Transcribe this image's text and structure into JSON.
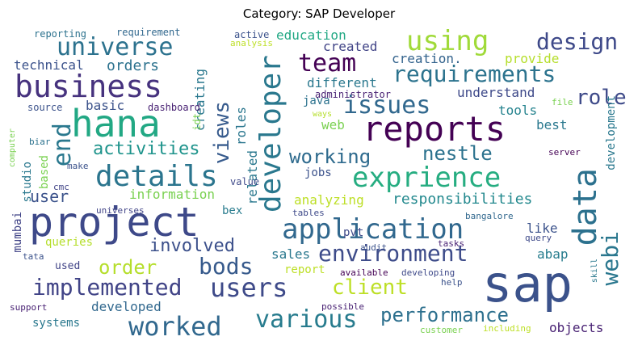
{
  "title": "Category: SAP Developer",
  "words": [
    {
      "text": "sap",
      "color": "#3b528b"
    },
    {
      "text": "project",
      "color": "#3e4989"
    },
    {
      "text": "reports",
      "color": "#440154"
    },
    {
      "text": "hana",
      "color": "#22a884"
    },
    {
      "text": "developer",
      "color": "#2a788e"
    },
    {
      "text": "data",
      "color": "#2c718e"
    },
    {
      "text": "business",
      "color": "#46327e"
    },
    {
      "text": "application",
      "color": "#31688e"
    },
    {
      "text": "exprience",
      "color": "#26ad81"
    },
    {
      "text": "using",
      "color": "#a0da39"
    },
    {
      "text": "details",
      "color": "#2b758e"
    },
    {
      "text": "team",
      "color": "#440154"
    },
    {
      "text": "universe",
      "color": "#2c728e"
    },
    {
      "text": "requirements",
      "color": "#2c738e"
    },
    {
      "text": "users",
      "color": "#3e4a89"
    },
    {
      "text": "issues",
      "color": "#31688e"
    },
    {
      "text": "webi",
      "color": "#2a778e"
    },
    {
      "text": "design",
      "color": "#3e4989"
    },
    {
      "text": "environment",
      "color": "#3e4c8a"
    },
    {
      "text": "implemented",
      "color": "#414487"
    },
    {
      "text": "worked",
      "color": "#31688e"
    },
    {
      "text": "various",
      "color": "#287c8e"
    },
    {
      "text": "performance",
      "color": "#2d708e"
    },
    {
      "text": "bods",
      "color": "#375a8c"
    },
    {
      "text": "client",
      "color": "#bddf26"
    },
    {
      "text": "working",
      "color": "#2f6b8e"
    },
    {
      "text": "nestle",
      "color": "#2c728e"
    },
    {
      "text": "role",
      "color": "#3e4a89"
    },
    {
      "text": "activities",
      "color": "#1f948c"
    },
    {
      "text": "views",
      "color": "#375b8d"
    },
    {
      "text": "involved",
      "color": "#3c508b"
    },
    {
      "text": "order",
      "color": "#b5de2b"
    },
    {
      "text": "end",
      "color": "#2a788e"
    },
    {
      "text": "user",
      "color": "#3b528b"
    },
    {
      "text": "responsibilities",
      "color": "#23898e"
    },
    {
      "text": "analyzing",
      "color": "#bddf26"
    },
    {
      "text": "information",
      "color": "#7ad151"
    },
    {
      "text": "orders",
      "color": "#2c728e"
    },
    {
      "text": "technical",
      "color": "#3b528b"
    },
    {
      "text": "different",
      "color": "#2a788e"
    },
    {
      "text": "education",
      "color": "#22a884"
    },
    {
      "text": "created",
      "color": "#414487"
    },
    {
      "text": "creation.",
      "color": "#33638d"
    },
    {
      "text": "understand",
      "color": "#3e4989"
    },
    {
      "text": "tools",
      "color": "#25838e"
    },
    {
      "text": "provide",
      "color": "#b5de2b"
    },
    {
      "text": "best",
      "color": "#2a788e"
    },
    {
      "text": "roles",
      "color": "#2a768e"
    },
    {
      "text": "basic",
      "color": "#3b528b"
    },
    {
      "text": "web",
      "color": "#7ad151"
    },
    {
      "text": "java",
      "color": "#2c728e"
    },
    {
      "text": "creating",
      "color": "#2a788e"
    },
    {
      "text": "related",
      "color": "#2a788e"
    },
    {
      "text": "abap",
      "color": "#287d8e"
    },
    {
      "text": "like",
      "color": "#3b528b"
    },
    {
      "text": "objects",
      "color": "#482173"
    },
    {
      "text": "developed",
      "color": "#31688e"
    },
    {
      "text": "development",
      "color": "#2a788e"
    },
    {
      "text": "systems",
      "color": "#2a788e"
    },
    {
      "text": "queries",
      "color": "#b5de2b"
    },
    {
      "text": "sales",
      "color": "#2a788e"
    },
    {
      "text": "report",
      "color": "#bddf26"
    },
    {
      "text": "used",
      "color": "#414487"
    },
    {
      "text": "pvt",
      "color": "#3e4989"
    },
    {
      "text": "bex",
      "color": "#287c8e"
    },
    {
      "text": "jobs",
      "color": "#3b528b"
    },
    {
      "text": "studio",
      "color": "#2a788e"
    },
    {
      "text": "based",
      "color": "#7ad151"
    },
    {
      "text": "mumbai",
      "color": "#414487"
    },
    {
      "text": "source",
      "color": "#3b528b"
    },
    {
      "text": "dashboard",
      "color": "#482173"
    },
    {
      "text": "reporting",
      "color": "#2c728e"
    },
    {
      "text": "requirement",
      "color": "#31688e"
    },
    {
      "text": "active",
      "color": "#3b528b"
    },
    {
      "text": "analysis",
      "color": "#bddf26"
    },
    {
      "text": "administrator",
      "color": "#482173"
    },
    {
      "text": "ways",
      "color": "#b5de2b"
    },
    {
      "text": "idt",
      "color": "#7ad151"
    },
    {
      "text": "biar",
      "color": "#2c728e"
    },
    {
      "text": "cmc",
      "color": "#414487"
    },
    {
      "text": "make",
      "color": "#3b528b"
    },
    {
      "text": "value",
      "color": "#3e4989"
    },
    {
      "text": "universes",
      "color": "#414487"
    },
    {
      "text": "tables",
      "color": "#3e4989"
    },
    {
      "text": "computer",
      "color": "#7ad151"
    },
    {
      "text": "tata",
      "color": "#3b528b"
    },
    {
      "text": "support",
      "color": "#482173"
    },
    {
      "text": "possible",
      "color": "#482173"
    },
    {
      "text": "audit",
      "color": "#3b528b"
    },
    {
      "text": "available",
      "color": "#440154"
    },
    {
      "text": "developing",
      "color": "#3e4989"
    },
    {
      "text": "help",
      "color": "#3b528b"
    },
    {
      "text": "tasks",
      "color": "#482173"
    },
    {
      "text": "query",
      "color": "#3e4989"
    },
    {
      "text": "skill",
      "color": "#2a788e"
    },
    {
      "text": "bangalore",
      "color": "#31688e"
    },
    {
      "text": "file",
      "color": "#7ad151"
    },
    {
      "text": "server",
      "color": "#440154"
    },
    {
      "text": "customer",
      "color": "#7ad151"
    },
    {
      "text": "including",
      "color": "#bddf26"
    }
  ]
}
